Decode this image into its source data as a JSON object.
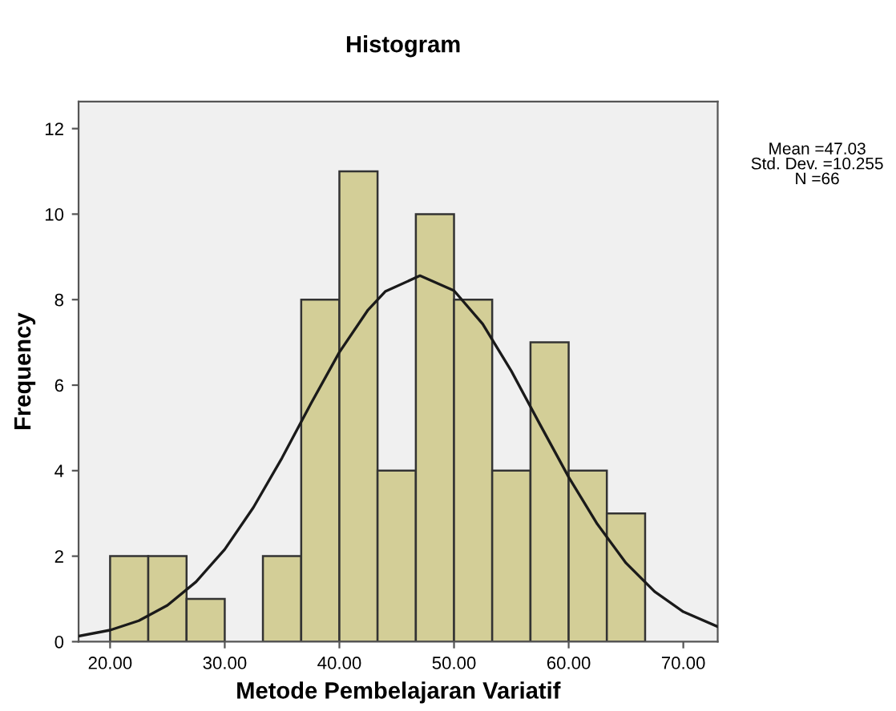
{
  "chart_data": {
    "type": "histogram",
    "title": "Histogram",
    "xlabel": "Metode Pembelajaran Variatif",
    "ylabel": "Frequency",
    "bins": [
      20,
      23.33,
      26.67,
      30,
      33.33,
      36.67,
      40,
      43.33,
      46.67,
      50,
      53.33,
      56.67,
      60,
      63.33,
      66.67
    ],
    "values": [
      2,
      2,
      1,
      0,
      2,
      8,
      11,
      4,
      10,
      8,
      4,
      7,
      4,
      3
    ],
    "color": "#d3ce97",
    "series": [
      {
        "type": "line",
        "color": "#1a1a1a",
        "x": [
          17.25,
          20,
          22.5,
          25,
          27.5,
          30,
          32.5,
          35,
          37.5,
          40,
          42.5,
          44,
          47.03,
          50,
          52.5,
          55,
          57.5,
          60,
          62.5,
          65,
          67.5,
          70,
          73
        ],
        "values": [
          0.13,
          0.27,
          0.49,
          0.85,
          1.4,
          2.16,
          3.14,
          4.3,
          5.56,
          6.77,
          7.76,
          8.19,
          8.56,
          8.21,
          7.43,
          6.33,
          5.08,
          3.85,
          2.75,
          1.84,
          1.17,
          0.7,
          0.35
        ]
      }
    ],
    "xlim": [
      17.25,
      73
    ],
    "ylim": [
      0,
      12.63
    ],
    "xticks": [
      {
        "value": 20,
        "label": "20.00"
      },
      {
        "value": 30,
        "label": "30.00"
      },
      {
        "value": 40,
        "label": "40.00"
      },
      {
        "value": 50,
        "label": "50.00"
      },
      {
        "value": 60,
        "label": "60.00"
      },
      {
        "value": 70,
        "label": "70.00"
      }
    ],
    "yticks": [
      0,
      2,
      4,
      6,
      8,
      10,
      12
    ],
    "annotations": [
      "Mean =47.03\nStd. Dev. =10.255\nN =66"
    ],
    "grid": false,
    "legend": false
  }
}
